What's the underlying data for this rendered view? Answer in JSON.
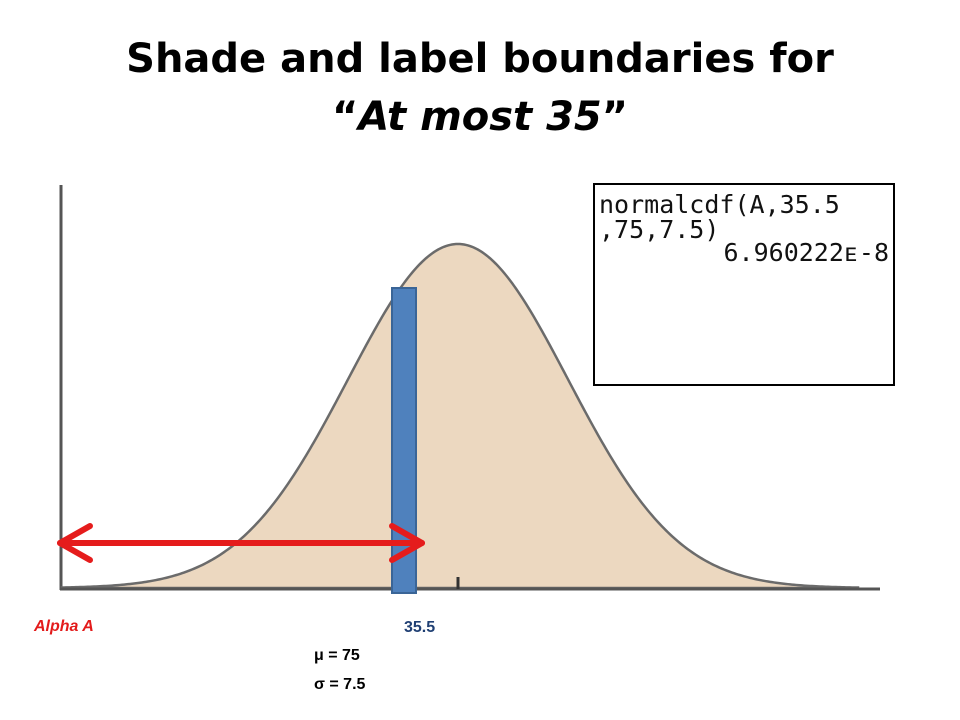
{
  "title": {
    "line1": "Shade and label boundaries for",
    "line2_open_quote": "“",
    "line2_emphasis": "At most 35",
    "line2_close_quote": "”"
  },
  "calculator": {
    "line1": "normalcdf(A,35.5",
    "line2": ",75,7.5)",
    "line3": "6.960222ᴇ-8"
  },
  "labels": {
    "lower_bound": "Alpha A",
    "upper_bound": "35.5",
    "mean": "μ = 75",
    "sd": "σ = 7.5"
  },
  "colors": {
    "curve_fill": "#ecd8c0",
    "boundary_bar": "#4f81bd",
    "arrow": "#e51c1c",
    "axis": "#555555"
  }
}
